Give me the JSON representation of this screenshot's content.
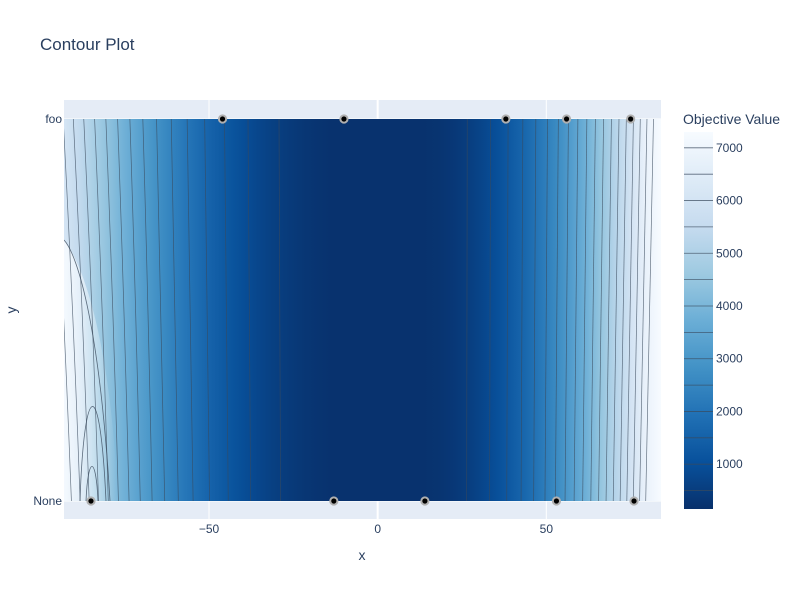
{
  "chart_data": {
    "type": "contour",
    "title": "Contour Plot",
    "xlabel": "x",
    "ylabel": "y",
    "x_range": [
      -93,
      84
    ],
    "x_ticks": [
      -50,
      0,
      50
    ],
    "x_tick_labels": [
      "−50",
      "0",
      "50"
    ],
    "y_categories": [
      "None",
      "foo"
    ],
    "colorbar": {
      "title": "Objective Value",
      "range": [
        150,
        7300
      ],
      "ticks": [
        1000,
        2000,
        3000,
        4000,
        5000,
        6000,
        7000
      ],
      "tick_labels": [
        "1000",
        "2000",
        "3000",
        "4000",
        "5000",
        "6000",
        "7000"
      ],
      "colorscale": [
        "#08306b",
        "#08519c",
        "#2171b5",
        "#4292c6",
        "#6baed6",
        "#9ecae1",
        "#c6dbef",
        "#deebf7",
        "#f7fbff"
      ]
    },
    "grid": true,
    "points": [
      {
        "x": -46,
        "y": "foo"
      },
      {
        "x": -10,
        "y": "foo"
      },
      {
        "x": 38,
        "y": "foo"
      },
      {
        "x": 56,
        "y": "foo"
      },
      {
        "x": 75,
        "y": "foo"
      },
      {
        "x": -85,
        "y": "None"
      },
      {
        "x": -13,
        "y": "None"
      },
      {
        "x": 14,
        "y": "None"
      },
      {
        "x": 53,
        "y": "None"
      },
      {
        "x": 76,
        "y": "None"
      }
    ]
  }
}
